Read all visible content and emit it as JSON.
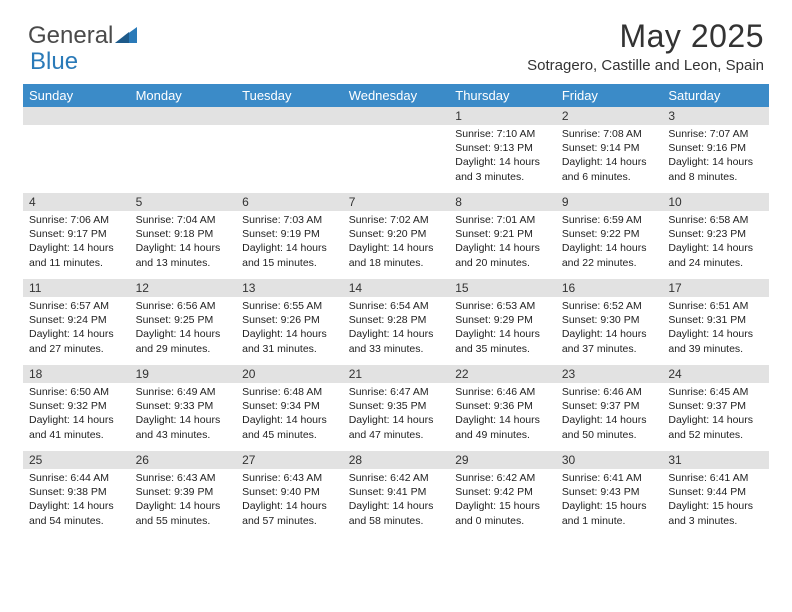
{
  "logo": {
    "text1": "General",
    "text2": "Blue"
  },
  "title": "May 2025",
  "location": "Sotragero, Castille and Leon, Spain",
  "colors": {
    "header_bg": "#3b8bc8",
    "header_text": "#ffffff",
    "daynum_bg": "#e2e2e2",
    "text": "#222222",
    "logo_gray": "#4a4a4a",
    "logo_blue": "#2a7ab8",
    "page_bg": "#ffffff"
  },
  "fonts": {
    "family": "Arial",
    "title_size": 32,
    "location_size": 15,
    "header_size": 13,
    "daynum_size": 12,
    "body_size": 10.5
  },
  "weekdays": [
    "Sunday",
    "Monday",
    "Tuesday",
    "Wednesday",
    "Thursday",
    "Friday",
    "Saturday"
  ],
  "weeks": [
    [
      null,
      null,
      null,
      null,
      {
        "n": "1",
        "sr": "Sunrise: 7:10 AM",
        "ss": "Sunset: 9:13 PM",
        "dl": "Daylight: 14 hours and 3 minutes."
      },
      {
        "n": "2",
        "sr": "Sunrise: 7:08 AM",
        "ss": "Sunset: 9:14 PM",
        "dl": "Daylight: 14 hours and 6 minutes."
      },
      {
        "n": "3",
        "sr": "Sunrise: 7:07 AM",
        "ss": "Sunset: 9:16 PM",
        "dl": "Daylight: 14 hours and 8 minutes."
      }
    ],
    [
      {
        "n": "4",
        "sr": "Sunrise: 7:06 AM",
        "ss": "Sunset: 9:17 PM",
        "dl": "Daylight: 14 hours and 11 minutes."
      },
      {
        "n": "5",
        "sr": "Sunrise: 7:04 AM",
        "ss": "Sunset: 9:18 PM",
        "dl": "Daylight: 14 hours and 13 minutes."
      },
      {
        "n": "6",
        "sr": "Sunrise: 7:03 AM",
        "ss": "Sunset: 9:19 PM",
        "dl": "Daylight: 14 hours and 15 minutes."
      },
      {
        "n": "7",
        "sr": "Sunrise: 7:02 AM",
        "ss": "Sunset: 9:20 PM",
        "dl": "Daylight: 14 hours and 18 minutes."
      },
      {
        "n": "8",
        "sr": "Sunrise: 7:01 AM",
        "ss": "Sunset: 9:21 PM",
        "dl": "Daylight: 14 hours and 20 minutes."
      },
      {
        "n": "9",
        "sr": "Sunrise: 6:59 AM",
        "ss": "Sunset: 9:22 PM",
        "dl": "Daylight: 14 hours and 22 minutes."
      },
      {
        "n": "10",
        "sr": "Sunrise: 6:58 AM",
        "ss": "Sunset: 9:23 PM",
        "dl": "Daylight: 14 hours and 24 minutes."
      }
    ],
    [
      {
        "n": "11",
        "sr": "Sunrise: 6:57 AM",
        "ss": "Sunset: 9:24 PM",
        "dl": "Daylight: 14 hours and 27 minutes."
      },
      {
        "n": "12",
        "sr": "Sunrise: 6:56 AM",
        "ss": "Sunset: 9:25 PM",
        "dl": "Daylight: 14 hours and 29 minutes."
      },
      {
        "n": "13",
        "sr": "Sunrise: 6:55 AM",
        "ss": "Sunset: 9:26 PM",
        "dl": "Daylight: 14 hours and 31 minutes."
      },
      {
        "n": "14",
        "sr": "Sunrise: 6:54 AM",
        "ss": "Sunset: 9:28 PM",
        "dl": "Daylight: 14 hours and 33 minutes."
      },
      {
        "n": "15",
        "sr": "Sunrise: 6:53 AM",
        "ss": "Sunset: 9:29 PM",
        "dl": "Daylight: 14 hours and 35 minutes."
      },
      {
        "n": "16",
        "sr": "Sunrise: 6:52 AM",
        "ss": "Sunset: 9:30 PM",
        "dl": "Daylight: 14 hours and 37 minutes."
      },
      {
        "n": "17",
        "sr": "Sunrise: 6:51 AM",
        "ss": "Sunset: 9:31 PM",
        "dl": "Daylight: 14 hours and 39 minutes."
      }
    ],
    [
      {
        "n": "18",
        "sr": "Sunrise: 6:50 AM",
        "ss": "Sunset: 9:32 PM",
        "dl": "Daylight: 14 hours and 41 minutes."
      },
      {
        "n": "19",
        "sr": "Sunrise: 6:49 AM",
        "ss": "Sunset: 9:33 PM",
        "dl": "Daylight: 14 hours and 43 minutes."
      },
      {
        "n": "20",
        "sr": "Sunrise: 6:48 AM",
        "ss": "Sunset: 9:34 PM",
        "dl": "Daylight: 14 hours and 45 minutes."
      },
      {
        "n": "21",
        "sr": "Sunrise: 6:47 AM",
        "ss": "Sunset: 9:35 PM",
        "dl": "Daylight: 14 hours and 47 minutes."
      },
      {
        "n": "22",
        "sr": "Sunrise: 6:46 AM",
        "ss": "Sunset: 9:36 PM",
        "dl": "Daylight: 14 hours and 49 minutes."
      },
      {
        "n": "23",
        "sr": "Sunrise: 6:46 AM",
        "ss": "Sunset: 9:37 PM",
        "dl": "Daylight: 14 hours and 50 minutes."
      },
      {
        "n": "24",
        "sr": "Sunrise: 6:45 AM",
        "ss": "Sunset: 9:37 PM",
        "dl": "Daylight: 14 hours and 52 minutes."
      }
    ],
    [
      {
        "n": "25",
        "sr": "Sunrise: 6:44 AM",
        "ss": "Sunset: 9:38 PM",
        "dl": "Daylight: 14 hours and 54 minutes."
      },
      {
        "n": "26",
        "sr": "Sunrise: 6:43 AM",
        "ss": "Sunset: 9:39 PM",
        "dl": "Daylight: 14 hours and 55 minutes."
      },
      {
        "n": "27",
        "sr": "Sunrise: 6:43 AM",
        "ss": "Sunset: 9:40 PM",
        "dl": "Daylight: 14 hours and 57 minutes."
      },
      {
        "n": "28",
        "sr": "Sunrise: 6:42 AM",
        "ss": "Sunset: 9:41 PM",
        "dl": "Daylight: 14 hours and 58 minutes."
      },
      {
        "n": "29",
        "sr": "Sunrise: 6:42 AM",
        "ss": "Sunset: 9:42 PM",
        "dl": "Daylight: 15 hours and 0 minutes."
      },
      {
        "n": "30",
        "sr": "Sunrise: 6:41 AM",
        "ss": "Sunset: 9:43 PM",
        "dl": "Daylight: 15 hours and 1 minute."
      },
      {
        "n": "31",
        "sr": "Sunrise: 6:41 AM",
        "ss": "Sunset: 9:44 PM",
        "dl": "Daylight: 15 hours and 3 minutes."
      }
    ]
  ]
}
